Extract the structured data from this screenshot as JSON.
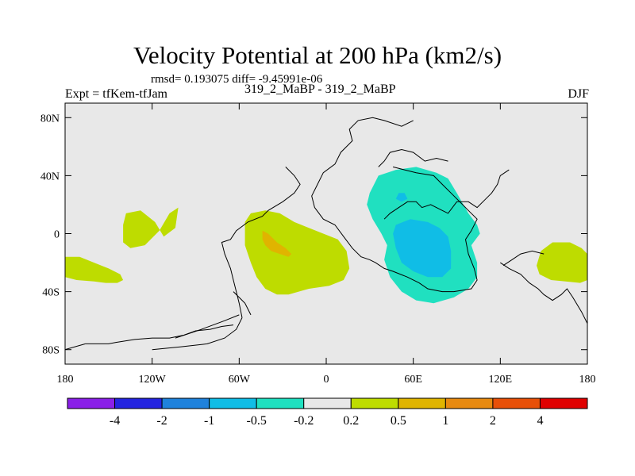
{
  "title": "Velocity Potential at 200 hPa (km2/s)",
  "stats_line": "rmsd= 0.193075 diff= -9.45991e-06",
  "experiment_line": "Expt = tfKem-tfJam",
  "case_line": "319_2_MaBP - 319_2_MaBP",
  "season": "DJF",
  "colors": {
    "background_fill": "#e8e8e8",
    "palette": [
      "#8a20e8",
      "#2424e0",
      "#1f82dc",
      "#10bde6",
      "#20e0c0",
      "#e8e8e8",
      "#bedc00",
      "#e0b400",
      "#e88a10",
      "#e85008",
      "#e00000"
    ]
  },
  "chart_data": {
    "type": "heatmap",
    "title": "Velocity Potential at 200 hPa (km2/s)",
    "projection": "cylindrical-equidistant",
    "xlim": [
      -180,
      180
    ],
    "ylim": [
      -90,
      90
    ],
    "x_ticks": [
      {
        "value": -180,
        "label": "180"
      },
      {
        "value": -120,
        "label": "120W"
      },
      {
        "value": -60,
        "label": "60W"
      },
      {
        "value": 0,
        "label": "0"
      },
      {
        "value": 60,
        "label": "60E"
      },
      {
        "value": 120,
        "label": "120E"
      },
      {
        "value": 180,
        "label": "180"
      }
    ],
    "y_ticks": [
      {
        "value": 80,
        "label": "80N"
      },
      {
        "value": 40,
        "label": "40N"
      },
      {
        "value": 0,
        "label": "0"
      },
      {
        "value": -40,
        "label": "40S"
      },
      {
        "value": -80,
        "label": "80S"
      }
    ],
    "colorbar": {
      "levels": [
        "-4",
        "-2",
        "-1",
        "-0.5",
        "-0.2",
        "0.2",
        "0.5",
        "1",
        "2",
        "4"
      ]
    },
    "regions": [
      {
        "level_index": 6,
        "points": [
          [
            -140,
            6
          ],
          [
            -140,
            -6
          ],
          [
            -135,
            -10
          ],
          [
            -125,
            -8
          ],
          [
            -115,
            2
          ],
          [
            -108,
            14
          ],
          [
            -102,
            18
          ],
          [
            -104,
            4
          ],
          [
            -112,
            -2
          ],
          [
            -118,
            8
          ],
          [
            -128,
            16
          ],
          [
            -138,
            14
          ]
        ]
      },
      {
        "level_index": 6,
        "points": [
          [
            -180,
            -16
          ],
          [
            -170,
            -16
          ],
          [
            -160,
            -20
          ],
          [
            -150,
            -24
          ],
          [
            -142,
            -28
          ],
          [
            -140,
            -32
          ],
          [
            -144,
            -34
          ],
          [
            -152,
            -34
          ],
          [
            -160,
            -33
          ],
          [
            -172,
            -32
          ],
          [
            -180,
            -30
          ]
        ]
      },
      {
        "level_index": 6,
        "points": [
          [
            180,
            -32
          ],
          [
            175,
            -34
          ],
          [
            165,
            -33
          ],
          [
            155,
            -32
          ],
          [
            147,
            -28
          ],
          [
            145,
            -22
          ],
          [
            148,
            -12
          ],
          [
            156,
            -6
          ],
          [
            168,
            -6
          ],
          [
            176,
            -10
          ],
          [
            180,
            -14
          ]
        ]
      },
      {
        "level_index": 6,
        "points": [
          [
            -56,
            8
          ],
          [
            -52,
            14
          ],
          [
            -42,
            16
          ],
          [
            -32,
            14
          ],
          [
            -22,
            8
          ],
          [
            -12,
            4
          ],
          [
            -2,
            0
          ],
          [
            8,
            -4
          ],
          [
            14,
            -12
          ],
          [
            16,
            -24
          ],
          [
            12,
            -32
          ],
          [
            2,
            -36
          ],
          [
            -12,
            -38
          ],
          [
            -26,
            -42
          ],
          [
            -34,
            -42
          ],
          [
            -42,
            -38
          ],
          [
            -48,
            -30
          ],
          [
            -52,
            -20
          ],
          [
            -56,
            -8
          ]
        ]
      },
      {
        "level_index": 7,
        "points": [
          [
            -44,
            2
          ],
          [
            -40,
            0
          ],
          [
            -34,
            -6
          ],
          [
            -28,
            -10
          ],
          [
            -24,
            -14
          ],
          [
            -26,
            -16
          ],
          [
            -32,
            -14
          ],
          [
            -38,
            -12
          ],
          [
            -42,
            -8
          ],
          [
            -44,
            -4
          ]
        ]
      },
      {
        "level_index": 4,
        "points": [
          [
            30,
            28
          ],
          [
            36,
            40
          ],
          [
            48,
            44
          ],
          [
            62,
            46
          ],
          [
            76,
            42
          ],
          [
            84,
            38
          ],
          [
            90,
            28
          ],
          [
            98,
            14
          ],
          [
            104,
            6
          ],
          [
            106,
            0
          ],
          [
            100,
            -8
          ],
          [
            104,
            -20
          ],
          [
            104,
            -30
          ],
          [
            98,
            -38
          ],
          [
            88,
            -44
          ],
          [
            74,
            -48
          ],
          [
            62,
            -46
          ],
          [
            52,
            -40
          ],
          [
            44,
            -30
          ],
          [
            40,
            -18
          ],
          [
            42,
            -8
          ],
          [
            38,
            0
          ],
          [
            32,
            10
          ],
          [
            28,
            20
          ]
        ]
      },
      {
        "level_index": 3,
        "points": [
          [
            48,
            6
          ],
          [
            58,
            10
          ],
          [
            70,
            8
          ],
          [
            78,
            4
          ],
          [
            84,
            -2
          ],
          [
            86,
            -12
          ],
          [
            86,
            -24
          ],
          [
            80,
            -30
          ],
          [
            70,
            -30
          ],
          [
            60,
            -26
          ],
          [
            52,
            -20
          ],
          [
            48,
            -10
          ],
          [
            46,
            0
          ]
        ]
      },
      {
        "level_index": 3,
        "points": [
          [
            50,
            28
          ],
          [
            54,
            28
          ],
          [
            56,
            24
          ],
          [
            52,
            22
          ],
          [
            48,
            24
          ]
        ]
      }
    ],
    "coastline_segments": [
      [
        [
          -166,
          -76
        ],
        [
          -150,
          -76
        ],
        [
          -145,
          -75
        ],
        [
          -132,
          -73
        ],
        [
          -120,
          -72
        ],
        [
          -108,
          -72
        ],
        [
          -98,
          -70
        ],
        [
          -90,
          -67
        ],
        [
          -80,
          -66
        ],
        [
          -72,
          -64
        ],
        [
          -64,
          -63
        ]
      ],
      [
        [
          -180,
          -80
        ],
        [
          -166,
          -76
        ]
      ],
      [
        [
          -58,
          -58
        ],
        [
          -60,
          -48
        ],
        [
          -62,
          -40
        ],
        [
          -64,
          -32
        ],
        [
          -66,
          -24
        ],
        [
          -70,
          -14
        ],
        [
          -72,
          -6
        ],
        [
          -66,
          -4
        ],
        [
          -62,
          2
        ],
        [
          -54,
          8
        ],
        [
          -44,
          12
        ],
        [
          -40,
          16
        ],
        [
          -30,
          22
        ],
        [
          -22,
          28
        ],
        [
          -18,
          34
        ],
        [
          -22,
          40
        ],
        [
          -28,
          46
        ]
      ],
      [
        [
          -64,
          -40
        ],
        [
          -60,
          -44
        ],
        [
          -56,
          -48
        ],
        [
          -54,
          -52
        ],
        [
          -52,
          -56
        ]
      ],
      [
        [
          -104,
          -72
        ],
        [
          -86,
          -66
        ],
        [
          -70,
          -60
        ],
        [
          -60,
          -56
        ]
      ],
      [
        [
          -120,
          -80
        ],
        [
          -100,
          -78
        ],
        [
          -82,
          -76
        ],
        [
          -70,
          -72
        ],
        [
          -62,
          -66
        ],
        [
          -58,
          -58
        ]
      ],
      [
        [
          -8,
          18
        ],
        [
          -2,
          10
        ],
        [
          6,
          6
        ],
        [
          12,
          -2
        ],
        [
          18,
          -10
        ],
        [
          24,
          -16
        ],
        [
          30,
          -18
        ],
        [
          34,
          -20
        ],
        [
          40,
          -24
        ],
        [
          46,
          -26
        ],
        [
          56,
          -30
        ],
        [
          64,
          -34
        ],
        [
          70,
          -38
        ],
        [
          80,
          -40
        ],
        [
          88,
          -40
        ],
        [
          100,
          -38
        ],
        [
          104,
          -32
        ],
        [
          102,
          -24
        ],
        [
          98,
          -14
        ],
        [
          96,
          -4
        ],
        [
          100,
          2
        ],
        [
          104,
          10
        ],
        [
          98,
          16
        ],
        [
          92,
          22
        ],
        [
          86,
          28
        ],
        [
          80,
          34
        ],
        [
          74,
          40
        ],
        [
          62,
          42
        ],
        [
          54,
          44
        ],
        [
          46,
          46
        ]
      ],
      [
        [
          -8,
          18
        ],
        [
          -10,
          26
        ],
        [
          -6,
          34
        ],
        [
          -2,
          42
        ],
        [
          6,
          48
        ],
        [
          10,
          56
        ],
        [
          18,
          64
        ],
        [
          16,
          72
        ],
        [
          22,
          78
        ],
        [
          32,
          80
        ],
        [
          40,
          78
        ],
        [
          52,
          74
        ],
        [
          60,
          78
        ]
      ],
      [
        [
          36,
          46
        ],
        [
          40,
          50
        ],
        [
          44,
          56
        ],
        [
          52,
          58
        ],
        [
          60,
          56
        ],
        [
          68,
          50
        ],
        [
          76,
          52
        ],
        [
          84,
          50
        ]
      ],
      [
        [
          40,
          10
        ],
        [
          44,
          14
        ],
        [
          50,
          18
        ],
        [
          56,
          22
        ],
        [
          62,
          22
        ],
        [
          66,
          18
        ],
        [
          72,
          20
        ],
        [
          80,
          16
        ],
        [
          84,
          14
        ],
        [
          90,
          22
        ],
        [
          98,
          22
        ],
        [
          104,
          18
        ],
        [
          108,
          22
        ],
        [
          114,
          28
        ],
        [
          118,
          34
        ],
        [
          120,
          40
        ],
        [
          126,
          44
        ]
      ],
      [
        [
          120,
          -20
        ],
        [
          126,
          -24
        ],
        [
          134,
          -28
        ],
        [
          140,
          -34
        ],
        [
          146,
          -38
        ],
        [
          150,
          -42
        ],
        [
          156,
          -46
        ],
        [
          162,
          -42
        ],
        [
          166,
          -38
        ],
        [
          170,
          -44
        ],
        [
          176,
          -54
        ],
        [
          180,
          -62
        ]
      ],
      [
        [
          150,
          -14
        ],
        [
          142,
          -12
        ],
        [
          134,
          -14
        ],
        [
          128,
          -18
        ],
        [
          122,
          -22
        ]
      ]
    ]
  }
}
